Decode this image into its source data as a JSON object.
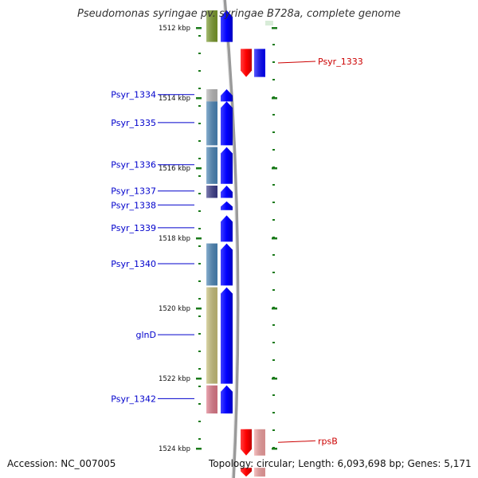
{
  "title": "Pseudomonas syringae pv. syringae B728a, complete genome",
  "footer": {
    "accession": "Accession: NC_007005",
    "summary": "Topology: circular; Length: 6,093,698 bp; Genes: 5,171"
  },
  "colors": {
    "forward_arrow": "#0000ff",
    "reverse_arrow": "#ff0000",
    "reverse_light": "#f2a0a0",
    "axis_tick": "#1a7a1a",
    "left_label": "#0000cc",
    "right_label": "#cc0000",
    "backbone": "#7a7a7a"
  },
  "scale_ticks": [
    {
      "label": "1512 kbp",
      "kbp": 1512
    },
    {
      "label": "1514 kbp",
      "kbp": 1514
    },
    {
      "label": "1516 kbp",
      "kbp": 1516
    },
    {
      "label": "1518 kbp",
      "kbp": 1518
    },
    {
      "label": "1520 kbp",
      "kbp": 1520
    },
    {
      "label": "1522 kbp",
      "kbp": 1522
    },
    {
      "label": "1524 kbp",
      "kbp": 1524
    }
  ],
  "forward_genes": [
    {
      "label": "",
      "start_kbp": 1511.5,
      "end_kbp": 1512.4,
      "block_color": "#7a9a2a"
    },
    {
      "label": "Psyr_1334",
      "start_kbp": 1513.75,
      "end_kbp": 1514.1,
      "block_color": "#b8b8b8"
    },
    {
      "label": "Psyr_1335",
      "start_kbp": 1514.1,
      "end_kbp": 1515.35,
      "block_color": "#4a86b8"
    },
    {
      "label": "Psyr_1336",
      "start_kbp": 1515.4,
      "end_kbp": 1516.45,
      "block_color": "#4a86b8"
    },
    {
      "label": "Psyr_1337",
      "start_kbp": 1516.5,
      "end_kbp": 1516.85,
      "block_color": "#3b3b8a"
    },
    {
      "label": "Psyr_1338",
      "start_kbp": 1516.95,
      "end_kbp": 1517.2,
      "block_color": ""
    },
    {
      "label": "Psyr_1339",
      "start_kbp": 1517.35,
      "end_kbp": 1518.1,
      "block_color": ""
    },
    {
      "label": "Psyr_1340",
      "start_kbp": 1518.15,
      "end_kbp": 1519.35,
      "block_color": "#4a86b8"
    },
    {
      "label": "glnD",
      "start_kbp": 1519.4,
      "end_kbp": 1522.15,
      "block_color": "#c8c07a"
    },
    {
      "label": "Psyr_1342",
      "start_kbp": 1522.2,
      "end_kbp": 1523.0,
      "block_color": "#e07a8a"
    }
  ],
  "reverse_genes": [
    {
      "label": "Psyr_1333",
      "start_kbp": 1512.6,
      "end_kbp": 1513.4,
      "light_block": false
    },
    {
      "label": "rpsB",
      "start_kbp": 1523.45,
      "end_kbp": 1524.2,
      "light_block": true
    },
    {
      "label": "",
      "start_kbp": 1524.55,
      "end_kbp": 1524.8,
      "light_block": true
    }
  ]
}
